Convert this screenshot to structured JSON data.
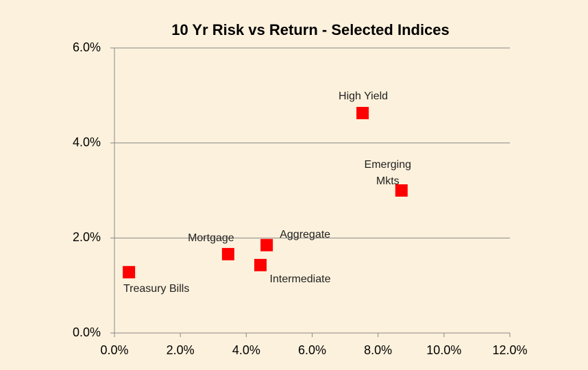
{
  "chart_data": {
    "type": "scatter",
    "title": "10 Yr Risk vs Return - Selected Indices",
    "x": [
      0.44,
      3.45,
      4.43,
      4.62,
      7.53,
      8.71
    ],
    "values": [
      1.28,
      1.66,
      1.43,
      1.85,
      4.63,
      3.0
    ],
    "point_labels": [
      "Treasury Bills",
      "Mortgage",
      "Intermediate",
      "Aggregate",
      "High Yield",
      "Emerging Mkts"
    ],
    "color": "#ff0000",
    "xlim": [
      0,
      12
    ],
    "ylim": [
      0,
      6
    ],
    "xticks": [
      {
        "value": 0,
        "label": "0.0%"
      },
      {
        "value": 2,
        "label": "2.0%"
      },
      {
        "value": 4,
        "label": "4.0%"
      },
      {
        "value": 6,
        "label": "6.0%"
      },
      {
        "value": 8,
        "label": "8.0%"
      },
      {
        "value": 10,
        "label": "10.0%"
      },
      {
        "value": 12,
        "label": "12.0%"
      }
    ],
    "yticks": [
      {
        "value": 0,
        "label": "0.0%"
      },
      {
        "value": 2,
        "label": "2.0%"
      },
      {
        "value": 4,
        "label": "4.0%"
      },
      {
        "value": 6,
        "label": "6.0%"
      }
    ],
    "grid": true
  }
}
